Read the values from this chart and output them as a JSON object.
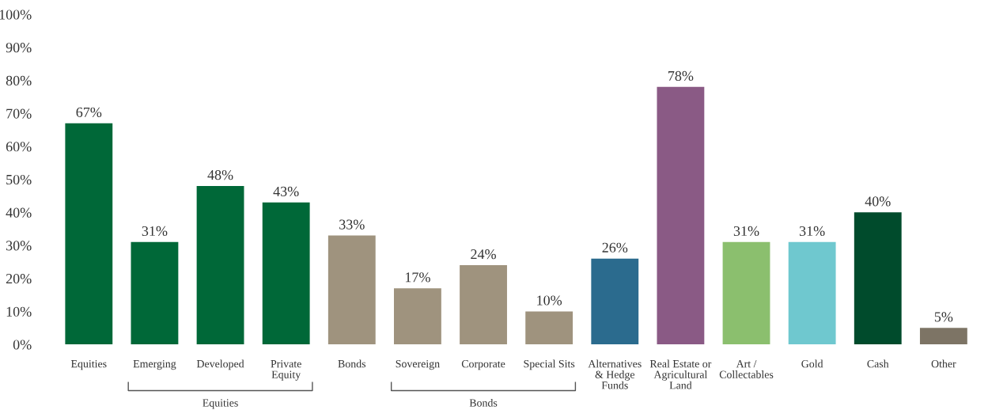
{
  "chart_data": {
    "type": "bar",
    "categories": [
      "Equities",
      "Emerging",
      "Developed",
      "Private\nEquity",
      "Bonds",
      "Sovereign",
      "Corporate",
      "Special Sits",
      "Alternatives\n& Hedge\nFunds",
      "Real Estate or\nAgricultural\nLand",
      "Art /\nCollectables",
      "Gold",
      "Cash",
      "Other"
    ],
    "values": [
      67,
      31,
      48,
      43,
      33,
      17,
      24,
      10,
      26,
      78,
      31,
      31,
      40,
      5
    ],
    "value_labels": [
      "67%",
      "31%",
      "48%",
      "43%",
      "33%",
      "17%",
      "24%",
      "10%",
      "26%",
      "78%",
      "31%",
      "31%",
      "40%",
      "5%"
    ],
    "colors": [
      "#006838",
      "#006838",
      "#006838",
      "#006838",
      "#9f937e",
      "#9f937e",
      "#9f937e",
      "#9f937e",
      "#2b6b8e",
      "#8a5a85",
      "#8bbf6e",
      "#6fc8cf",
      "#004b2c",
      "#7d7465"
    ],
    "ylim": [
      0,
      100
    ],
    "yticks": [
      {
        "value": 0,
        "label": "0%"
      },
      {
        "value": 10,
        "label": "10%"
      },
      {
        "value": 20,
        "label": "20%"
      },
      {
        "value": 30,
        "label": "30%"
      },
      {
        "value": 40,
        "label": "40%"
      },
      {
        "value": 50,
        "label": "50%"
      },
      {
        "value": 60,
        "label": "60%"
      },
      {
        "value": 70,
        "label": "70%"
      },
      {
        "value": 80,
        "label": "80%"
      },
      {
        "value": 90,
        "label": "90%"
      },
      {
        "value": 100,
        "label": "100%"
      }
    ],
    "grid": false,
    "legend": false,
    "annotations": [
      "Equities",
      "Bonds"
    ]
  }
}
